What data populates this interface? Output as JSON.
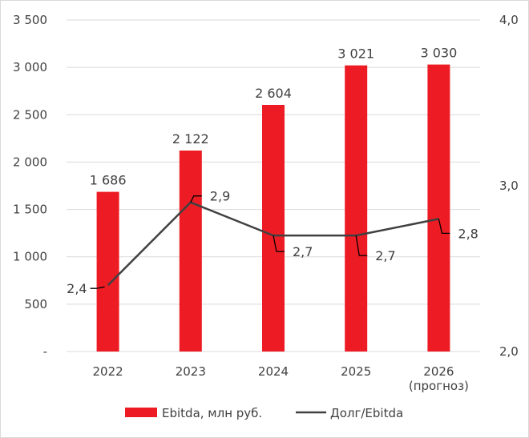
{
  "chart_data": {
    "type": "bar+line",
    "categories": [
      "2022",
      "2023",
      "2024",
      "2025",
      "2026"
    ],
    "category_sublabels": [
      "",
      "",
      "",
      "",
      "(прогноз)"
    ],
    "series": [
      {
        "name": "Ebitda, млн руб.",
        "type": "bar",
        "axis": "left",
        "values": [
          1686,
          2122,
          2604,
          3021,
          3030
        ],
        "labels": [
          "1 686",
          "2 122",
          "2 604",
          "3 021",
          "3 030"
        ],
        "color": "#ed1c24"
      },
      {
        "name": "Долг/Ebitda",
        "type": "line",
        "axis": "right",
        "values": [
          2.4,
          2.9,
          2.7,
          2.7,
          2.8
        ],
        "labels": [
          "2,4",
          "2,9",
          "2,7",
          "2,7",
          "2,8"
        ],
        "color": "#404040"
      }
    ],
    "y_left": {
      "ylim": [
        0,
        3500
      ],
      "ticks": [
        0,
        500,
        1000,
        1500,
        2000,
        2500,
        3000,
        3500
      ],
      "tick_labels": [
        "-",
        "500",
        "1 000",
        "1 500",
        "2 000",
        "2 500",
        "3 000",
        "3 500"
      ]
    },
    "y_right": {
      "ylim": [
        2.0,
        4.0
      ],
      "ticks": [
        2.0,
        3.0,
        4.0
      ],
      "tick_labels": [
        "2,0",
        "3,0",
        "4,0"
      ]
    },
    "grid": true,
    "legend_position": "bottom"
  }
}
